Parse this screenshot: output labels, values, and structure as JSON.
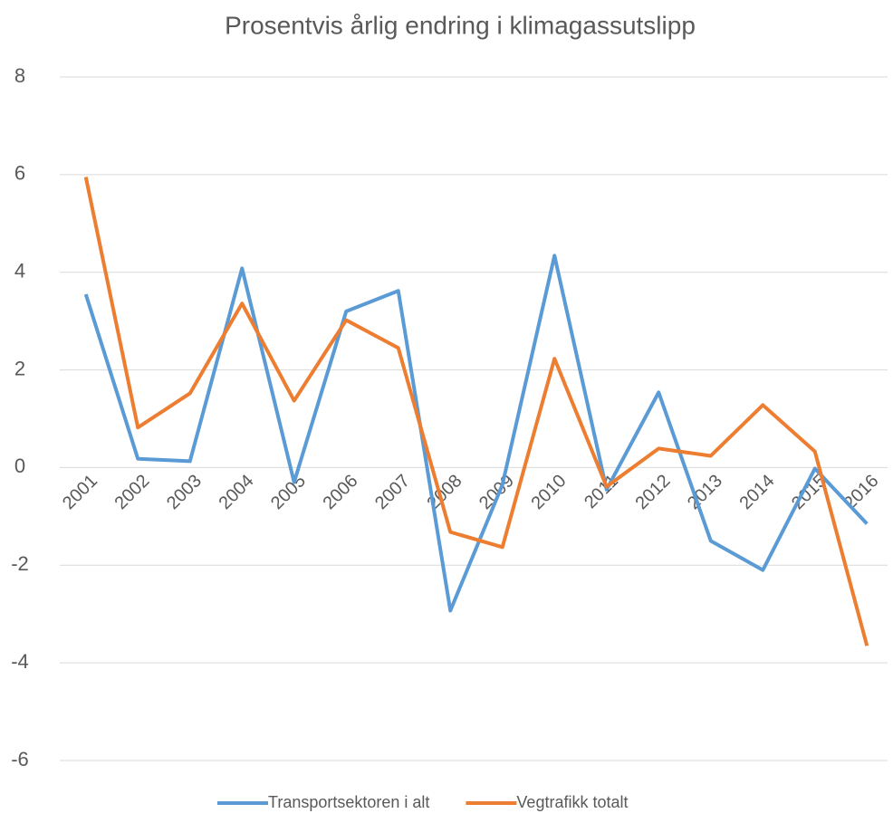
{
  "chart_data": {
    "type": "line",
    "title": "Prosentvis årlig endring i klimagassutslipp",
    "categories": [
      "2001",
      "2002",
      "2003",
      "2004",
      "2005",
      "2006",
      "2007",
      "2008",
      "2009",
      "2010",
      "2011",
      "2012",
      "2013",
      "2014",
      "2015",
      "2016"
    ],
    "series": [
      {
        "name": "Transportsektoren i alt",
        "color": "#5b9bd5",
        "values": [
          3.55,
          0.18,
          0.13,
          4.08,
          -0.3,
          3.2,
          3.62,
          -2.93,
          -0.35,
          4.34,
          -0.45,
          1.54,
          -1.5,
          -2.1,
          -0.02,
          -1.15
        ]
      },
      {
        "name": "Vegtrafikk totalt",
        "color": "#ed7d31",
        "values": [
          5.95,
          0.82,
          1.52,
          3.36,
          1.37,
          3.02,
          2.45,
          -1.32,
          -1.63,
          2.23,
          -0.39,
          0.39,
          0.24,
          1.28,
          0.33,
          -3.65
        ]
      }
    ],
    "ylim": [
      -6,
      8
    ],
    "yticks": [
      -6,
      -4,
      -2,
      0,
      2,
      4,
      6,
      8
    ],
    "grid": true,
    "legend": "bottom"
  }
}
